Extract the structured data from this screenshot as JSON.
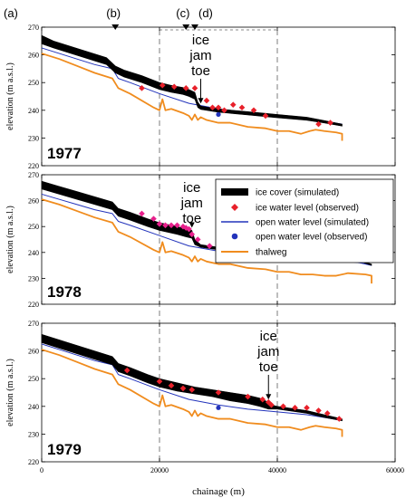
{
  "chart_data": {
    "type": "line",
    "x_axis": {
      "label": "chainage (m)",
      "lim": [
        0,
        60000
      ],
      "ticks": [
        0,
        20000,
        40000,
        60000
      ]
    },
    "y_axis": {
      "label": "elevation (m a.s.l.)",
      "lim": [
        220,
        270
      ],
      "ticks": [
        220,
        230,
        240,
        250,
        260,
        270
      ]
    },
    "location_markers": [
      {
        "label": "(a)",
        "x": 0
      },
      {
        "label": "(b)",
        "x": 12500
      },
      {
        "label": "(c)",
        "x": 24500
      },
      {
        "label": "(d)",
        "x": 26000
      }
    ],
    "dashed_lines_x": [
      20000,
      40000
    ],
    "legend": {
      "position": "right (in 1978 panel)",
      "entries": [
        {
          "label": "ice cover (simulated)",
          "color": "#000000"
        },
        {
          "label": "ice water level (observed)",
          "color": "#e8202a"
        },
        {
          "label": "open water level (simulated)",
          "color": "#2233bb"
        },
        {
          "label": "open water level (observed)",
          "color": "#2233bb"
        },
        {
          "label": "thalweg",
          "color": "#f08c1e"
        }
      ]
    },
    "colors": {
      "ice_cover": "#000000",
      "ice_obs": "#e8202a",
      "ice_obs_1978": "#e8208c",
      "open_water": "#2233bb",
      "thalweg": "#f08c1e",
      "dashed": "#888888"
    },
    "panels": [
      {
        "year": "1977",
        "x_max": 51000,
        "annotation": {
          "lines": [
            "ice",
            "jam",
            "toe"
          ],
          "x": 27000
        },
        "ice_cover": {
          "x": [
            0,
            2000,
            5000,
            8000,
            11000,
            12500,
            14000,
            17000,
            20000,
            22000,
            24000,
            25000,
            26000,
            26500,
            27000,
            30000,
            35000,
            40000,
            45000,
            48000,
            51000
          ],
          "top": [
            267,
            265,
            263,
            261,
            259,
            256,
            254.5,
            252.5,
            250,
            249,
            248.2,
            247.5,
            246.5,
            243,
            241.5,
            240.5,
            239.5,
            238.5,
            237.5,
            236.3,
            235
          ],
          "bottom": [
            264,
            262.5,
            260.5,
            258.5,
            256.5,
            253.5,
            252,
            250,
            247.5,
            246.5,
            245.7,
            245,
            244,
            241,
            240.3,
            239.3,
            238.3,
            237.3,
            236.4,
            235.4,
            234.3
          ]
        },
        "open_water_sim": {
          "x": [
            0,
            3000,
            6000,
            9000,
            12000,
            13000,
            15000,
            20000,
            25000,
            30000,
            35000,
            40000,
            45000,
            51000
          ],
          "y": [
            262.5,
            260.5,
            258.5,
            256.5,
            255,
            251.5,
            250,
            246,
            242.5,
            240.5,
            239,
            238,
            237,
            235
          ]
        },
        "thalweg": {
          "x": [
            0,
            3000,
            6000,
            9000,
            12000,
            13000,
            15000,
            19000,
            20000,
            20500,
            21000,
            22000,
            24000,
            25000,
            25500,
            26000,
            26500,
            27000,
            28000,
            30000,
            32000,
            35000,
            38000,
            40000,
            42000,
            44000,
            45500,
            46500,
            48000,
            50000,
            51000,
            51000
          ],
          "y": [
            260.5,
            258.5,
            256,
            253.5,
            251.5,
            248,
            246,
            241,
            240,
            244,
            240,
            240.5,
            239,
            238,
            236.5,
            238.5,
            236.5,
            237.5,
            236.5,
            235.5,
            235.5,
            234,
            233.5,
            232.5,
            232.5,
            231.5,
            232.5,
            233,
            232.5,
            232,
            231.5,
            229
          ]
        },
        "ice_obs": {
          "x": [
            17000,
            20500,
            22500,
            24500,
            26000,
            28000,
            29000,
            30000,
            31000,
            32500,
            34000,
            36000,
            38000,
            47000,
            49000
          ],
          "y": [
            248,
            249,
            248.5,
            248,
            248,
            243.5,
            241,
            241,
            240,
            242,
            241,
            240,
            238,
            235,
            235.5
          ]
        },
        "open_obs": {
          "x": [
            30000
          ],
          "y": [
            238.5
          ]
        }
      },
      {
        "year": "1978",
        "x_max": 56000,
        "annotation": {
          "lines": [
            "ice",
            "jam",
            "toe"
          ],
          "x": 25500
        },
        "ice_cover": {
          "x": [
            0,
            3000,
            6000,
            9000,
            12000,
            13000,
            15000,
            18000,
            20000,
            23000,
            24500,
            25500,
            26000,
            26500,
            27000,
            30000,
            35000,
            40000,
            45000,
            50000,
            54000,
            56000
          ],
          "top": [
            267.5,
            265.5,
            263.5,
            261.5,
            259.5,
            257,
            255.5,
            253,
            251.5,
            250,
            249,
            248.5,
            245,
            244,
            243,
            242,
            241,
            240,
            239.5,
            238.5,
            237,
            235.5
          ],
          "bottom": [
            264.5,
            262.5,
            260.5,
            258.5,
            256.5,
            254,
            252.5,
            250,
            248.5,
            247,
            246,
            245.5,
            243,
            242.5,
            242,
            241,
            240,
            239.5,
            239,
            238,
            236.5,
            235
          ]
        },
        "open_water_sim": {
          "x": [
            0,
            3000,
            6000,
            9000,
            12000,
            13000,
            15000,
            20000,
            25000,
            30000,
            35000,
            40000,
            45000,
            50000,
            54000,
            56000
          ],
          "y": [
            262.5,
            260.5,
            258.5,
            256.5,
            255,
            252,
            250.5,
            246.5,
            242.5,
            240.5,
            239,
            238.5,
            238,
            237,
            236,
            235
          ]
        },
        "thalweg": {
          "x": [
            0,
            3000,
            6000,
            9000,
            12000,
            13000,
            15000,
            19000,
            20000,
            20500,
            21000,
            22000,
            24000,
            25000,
            25500,
            26000,
            26500,
            27000,
            28000,
            30000,
            32000,
            35000,
            38000,
            40000,
            42000,
            44000,
            46000,
            48000,
            50000,
            52000,
            55000,
            56000,
            56000
          ],
          "y": [
            260.5,
            258.5,
            256,
            253.5,
            251.5,
            248,
            246,
            241,
            240,
            244,
            240,
            240.5,
            239,
            238,
            236.5,
            238.5,
            236.5,
            237.5,
            236.5,
            235.5,
            235.5,
            234,
            233.5,
            232.5,
            232.5,
            231.5,
            231.5,
            231,
            231,
            232,
            231.5,
            231,
            228
          ]
        },
        "ice_obs": {
          "x": [
            17000,
            19000,
            20000,
            21000,
            22000,
            23000,
            24000,
            24500,
            25000,
            25500,
            26500,
            28500,
            32500
          ],
          "y": [
            255,
            253,
            251,
            250.5,
            250.5,
            250.5,
            250,
            249.5,
            249,
            247,
            245,
            242.5,
            241
          ]
        },
        "open_obs": {
          "x": [],
          "y": []
        }
      },
      {
        "year": "1979",
        "x_max": 51000,
        "annotation": {
          "lines": [
            "ice",
            "jam",
            "toe"
          ],
          "x": 38500
        },
        "ice_cover": {
          "x": [
            0,
            3000,
            6000,
            9000,
            12000,
            13000,
            15000,
            18000,
            20000,
            23000,
            26000,
            29000,
            32000,
            35000,
            37000,
            38500,
            39000,
            40000,
            45000,
            48000,
            51000
          ],
          "top": [
            266,
            264,
            262,
            260,
            258,
            255.5,
            254,
            251.5,
            250,
            248.5,
            247,
            246,
            245,
            244,
            243,
            241.5,
            240.5,
            240,
            238.5,
            237,
            235.5
          ],
          "bottom": [
            263,
            261,
            259,
            257,
            255,
            252.5,
            251,
            248.5,
            247,
            245.5,
            244.5,
            243.5,
            242,
            241,
            240,
            239,
            239,
            239,
            237.5,
            236,
            234.8
          ]
        },
        "open_water_sim": {
          "x": [
            0,
            3000,
            6000,
            9000,
            12000,
            13000,
            15000,
            20000,
            25000,
            30000,
            35000,
            40000,
            45000,
            51000
          ],
          "y": [
            262.5,
            260.5,
            258.5,
            256.5,
            255,
            251.5,
            250,
            246,
            242.5,
            240.5,
            239,
            238,
            237,
            235
          ]
        },
        "thalweg": {
          "x": [
            0,
            3000,
            6000,
            9000,
            12000,
            13000,
            15000,
            19000,
            20000,
            20500,
            21000,
            22000,
            24000,
            25000,
            25500,
            26000,
            26500,
            27000,
            28000,
            30000,
            32000,
            35000,
            38000,
            40000,
            42000,
            44000,
            45500,
            46500,
            48000,
            50000,
            51000,
            51000
          ],
          "y": [
            260.5,
            258.5,
            256,
            253.5,
            251.5,
            248,
            246,
            241,
            240,
            244,
            240,
            240.5,
            239,
            238,
            236.5,
            238.5,
            236.5,
            237.5,
            236.5,
            235.5,
            235.5,
            234,
            233.5,
            232.5,
            232.5,
            231.5,
            232.5,
            233,
            232.5,
            232,
            231.5,
            229
          ]
        },
        "ice_obs": {
          "x": [
            14500,
            20000,
            22000,
            24000,
            25500,
            30000,
            35000,
            37500,
            38500,
            39000,
            41000,
            43000,
            45000,
            47000,
            48500,
            50500
          ],
          "y": [
            253,
            249,
            247.5,
            246.5,
            246,
            245,
            243.5,
            242.5,
            241.5,
            240.5,
            240,
            239.5,
            239.5,
            238.5,
            237.5,
            235.5
          ]
        },
        "open_obs": {
          "x": [
            30000
          ],
          "y": [
            239.5
          ]
        }
      }
    ]
  }
}
